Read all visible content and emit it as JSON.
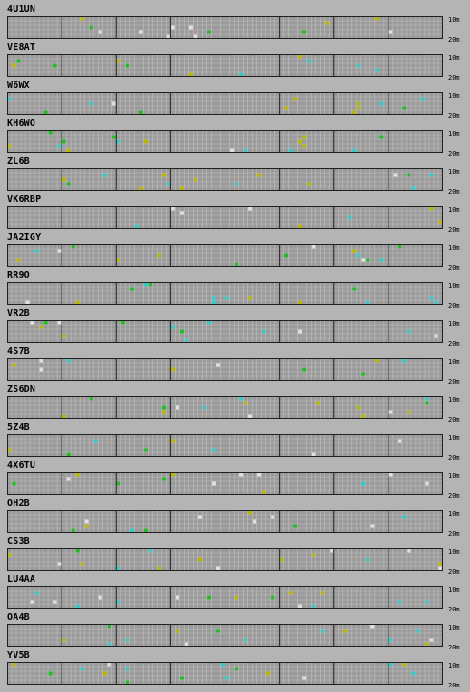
{
  "grid": {
    "band_top_label": "10m",
    "band_bottom_label": "20m",
    "colors": {
      "background": "#b4b4b4",
      "cell": "#9a9a9a",
      "cell_line": "#c0c0c0",
      "frame": "#202020",
      "green": "#22bb22",
      "yellow": "#b8b800",
      "cyan": "#33cccc",
      "white": "#e0e0e0"
    }
  },
  "stations": [
    {
      "callsign": "4U1UN"
    },
    {
      "callsign": "VE8AT"
    },
    {
      "callsign": "W6WX"
    },
    {
      "callsign": "KH6WO"
    },
    {
      "callsign": "ZL6B"
    },
    {
      "callsign": "VK6RBP"
    },
    {
      "callsign": "JA2IGY"
    },
    {
      "callsign": "RR9O"
    },
    {
      "callsign": "VR2B"
    },
    {
      "callsign": "4S7B"
    },
    {
      "callsign": "ZS6DN"
    },
    {
      "callsign": "5Z4B"
    },
    {
      "callsign": "4X6TU"
    },
    {
      "callsign": "OH2B"
    },
    {
      "callsign": "CS3B"
    },
    {
      "callsign": "LU4AA"
    },
    {
      "callsign": "OA4B"
    },
    {
      "callsign": "YV5B"
    }
  ]
}
